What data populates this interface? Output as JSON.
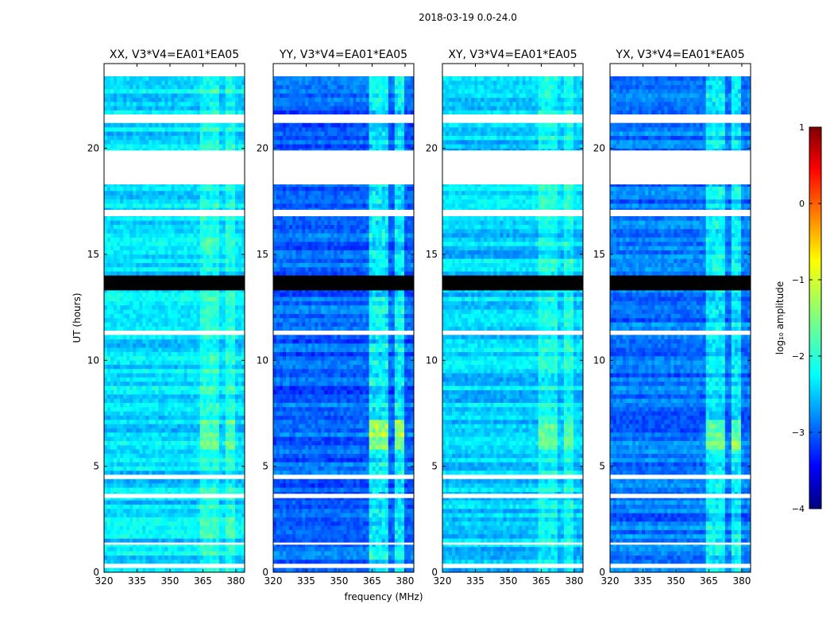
{
  "chart_data": {
    "type": "heatmap",
    "suptitle": "2018-03-19 0.0-24.0",
    "xlabel": "frequency (MHz)",
    "ylabel": "UT (hours)",
    "xlim": [
      320,
      384
    ],
    "ylim": [
      0,
      24
    ],
    "x_ticks": [
      320,
      335,
      350,
      365,
      380
    ],
    "y_ticks": [
      0,
      5,
      10,
      15,
      20
    ],
    "panels": [
      {
        "title": "XX, V3*V4=EA01*EA05",
        "base_log_amp": -2.3,
        "rfi_boost": 0.6
      },
      {
        "title": "YY, V3*V4=EA01*EA05",
        "base_log_amp": -2.9,
        "rfi_boost": 1.4
      },
      {
        "title": "XY, V3*V4=EA01*EA05",
        "base_log_amp": -2.35,
        "rfi_boost": 0.6
      },
      {
        "title": "YX, V3*V4=EA01*EA05",
        "base_log_amp": -2.8,
        "rfi_boost": 1.2
      }
    ],
    "rfi_bands_mhz": [
      [
        363,
        366
      ],
      [
        367,
        369
      ],
      [
        370,
        373
      ],
      [
        375,
        378
      ],
      [
        378,
        380
      ]
    ],
    "flagged_hours": [
      [
        23.4,
        24.0
      ],
      [
        21.2,
        21.6
      ],
      [
        18.3,
        19.9
      ],
      [
        16.8,
        17.1
      ],
      [
        11.2,
        11.4
      ],
      [
        4.4,
        4.6
      ],
      [
        3.5,
        3.7
      ],
      [
        1.3,
        1.4
      ],
      [
        0.2,
        0.4
      ]
    ],
    "dark_hours": [
      [
        13.3,
        14.0
      ]
    ],
    "colorbar": {
      "label": "log₁₀ amplitude",
      "range": [
        -4,
        1
      ],
      "ticks": [
        "1",
        "0",
        "−1",
        "−2",
        "−3",
        "−4"
      ],
      "colormap": "jet"
    }
  }
}
